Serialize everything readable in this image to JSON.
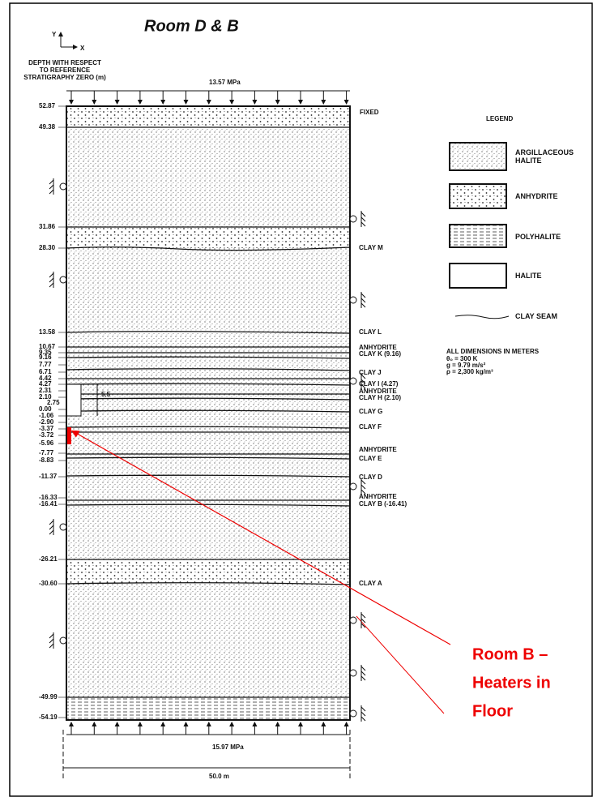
{
  "title": "Room D & B",
  "axes": {
    "y": "Y",
    "x": "X"
  },
  "depth_header": [
    "DEPTH WITH RESPECT",
    "TO REFERENCE",
    "STRATIGRAPHY ZERO (m)"
  ],
  "top_load": "13.57 MPa",
  "bottom_load": "15.97 MPa",
  "width": "50.0 m",
  "fixed": "FIXED",
  "depths": [
    "52.87",
    "49.38",
    "31.86",
    "28.30",
    "13.58",
    "10.67",
    "9.35",
    "9.16",
    "7.77",
    "6.71",
    "4.42",
    "4.27",
    "2.31",
    "2.10",
    "0.00",
    "-1.06",
    "-2.90",
    "-3.37",
    "-3.72",
    "-5.96",
    "-7.77",
    "-8.83",
    "-11.37",
    "-16.33",
    "-16.41",
    "-26.21",
    "-30.60",
    "-49.99",
    "-54.19"
  ],
  "room_dims": {
    "width": "2.75",
    "height": "5.5"
  },
  "layers": [
    "CLAY M",
    "CLAY L",
    "ANHYDRITE",
    "CLAY K (9.16)",
    "CLAY J",
    "CLAY I (4.27)",
    "ANHYDRITE",
    "CLAY H (2.10)",
    "CLAY G",
    "CLAY F",
    "ANHYDRITE",
    "CLAY E",
    "CLAY D",
    "ANHYDRITE",
    "CLAY B (-16.41)",
    "CLAY A"
  ],
  "legend": {
    "title": "LEGEND",
    "items": [
      "ARGILLACEOUS HALITE",
      "ANHYDRITE",
      "POLYHALITE",
      "HALITE",
      "CLAY SEAM"
    ]
  },
  "notes": [
    "ALL DIMENSIONS IN METERS",
    "θ₀ = 300 K",
    "g = 9.79 m/s²",
    "ρ = 2,300 kg/m³"
  ],
  "annotation": [
    "Room B –",
    "Heaters in",
    "Floor"
  ]
}
